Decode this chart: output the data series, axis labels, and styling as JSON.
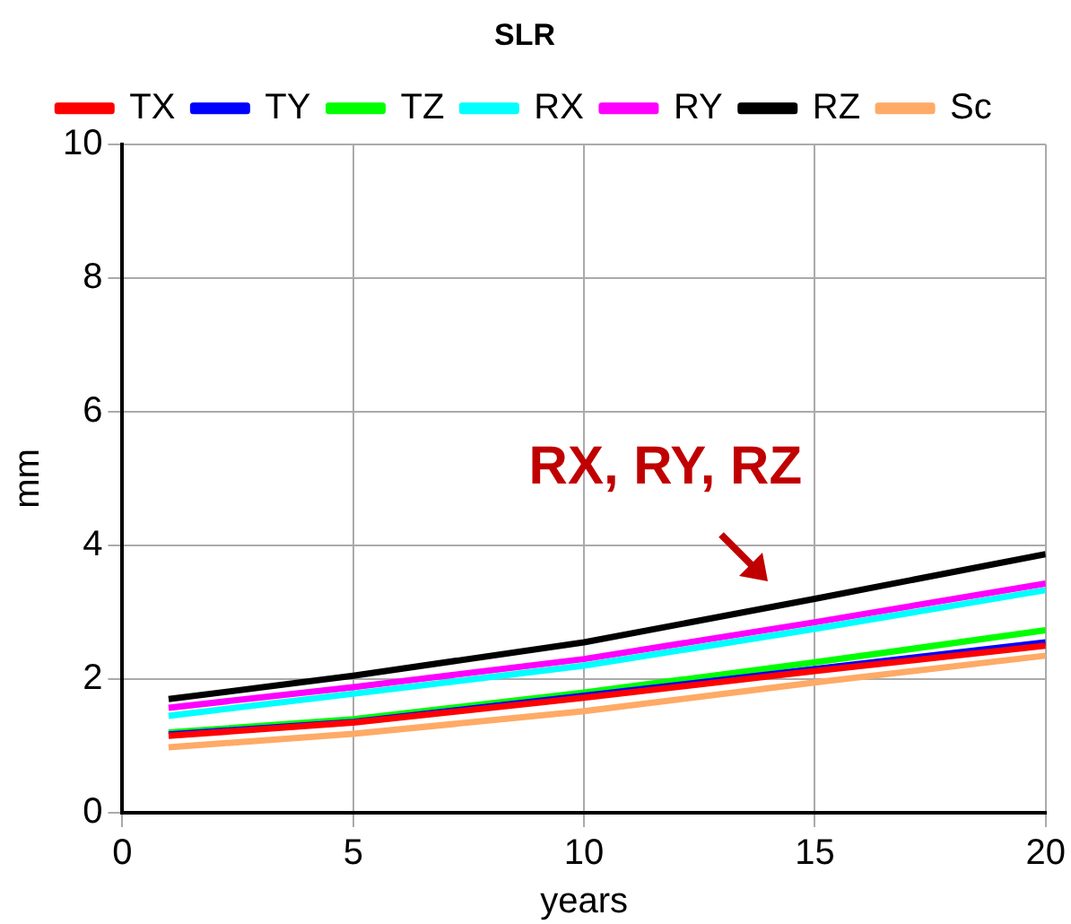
{
  "chart_data": {
    "type": "line",
    "title": "SLR",
    "xlabel": "years",
    "ylabel": "mm",
    "x": [
      1,
      5,
      10,
      15,
      20
    ],
    "series": [
      {
        "name": "TX",
        "color": "#ff0000",
        "values": [
          1.15,
          1.35,
          1.72,
          2.12,
          2.5
        ]
      },
      {
        "name": "TY",
        "color": "#0000ff",
        "values": [
          1.17,
          1.36,
          1.75,
          2.15,
          2.55
        ]
      },
      {
        "name": "TZ",
        "color": "#00ff00",
        "values": [
          1.2,
          1.4,
          1.8,
          2.25,
          2.73
        ]
      },
      {
        "name": "RX",
        "color": "#00ffff",
        "values": [
          1.45,
          1.78,
          2.2,
          2.75,
          3.33
        ]
      },
      {
        "name": "RY",
        "color": "#ff00ff",
        "values": [
          1.57,
          1.88,
          2.3,
          2.85,
          3.43
        ]
      },
      {
        "name": "RZ",
        "color": "#000000",
        "values": [
          1.7,
          2.05,
          2.55,
          3.2,
          3.87
        ]
      },
      {
        "name": "Sc",
        "color": "#ffaa66",
        "values": [
          0.98,
          1.18,
          1.52,
          1.95,
          2.35
        ]
      }
    ],
    "xlim": [
      0,
      20
    ],
    "xticks": [
      0,
      5,
      10,
      15,
      20
    ],
    "ylim": [
      0,
      10
    ],
    "yticks": [
      0,
      2,
      4,
      6,
      8,
      10
    ],
    "grid": true,
    "legend": "top",
    "marker": "none",
    "line_style": "solid",
    "annotations": [
      "RX, RY, RZ"
    ]
  }
}
